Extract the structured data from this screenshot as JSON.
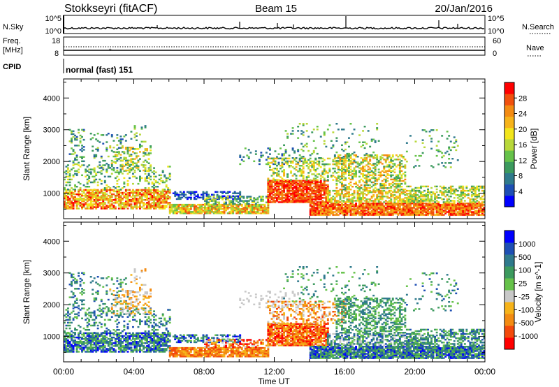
{
  "header": {
    "station": "Stokkseyri (fitACF)",
    "beam": "Beam 15",
    "date": "20/Jan/2016"
  },
  "top_panels": {
    "nsky_label": "N.Sky",
    "nsky_scale_top": "10^5",
    "nsky_scale_bottom": "10^0",
    "nsearch_label": "N.Search",
    "nsearch_scale_top": "10^5",
    "nsearch_scale_bottom": "10^0",
    "freq_label_1": "Freq.",
    "freq_label_2": "[MHz]",
    "freq_scale_top": "18",
    "freq_scale_bottom": "8",
    "nave_label": "Nave",
    "nave_scale_top": "60",
    "nave_scale_bottom": "0",
    "cpid_label": "CPID",
    "cpid_value": "normal (fast) 151"
  },
  "power_colorbar": {
    "label": "Power [dB]",
    "ticks": [
      "28",
      "24",
      "20",
      "16",
      "12",
      "8",
      "4"
    ],
    "colors": [
      "#0000ff",
      "#1e4fb4",
      "#2f7a8c",
      "#3c9a5e",
      "#66c24a",
      "#b8d83a",
      "#f2e51c",
      "#f6b31a",
      "#f38b12",
      "#f1500d",
      "#ff0000"
    ]
  },
  "velocity_colorbar": {
    "label": "Velocity [m s^-1]",
    "ticks": [
      "1000",
      "500",
      "100",
      "25",
      "-25",
      "-100",
      "-500",
      "-1000"
    ],
    "colors": [
      "#ff0000",
      "#f34a0c",
      "#f38b12",
      "#f6b31a",
      "#c8c8c8",
      "#66c24a",
      "#3c9a5e",
      "#2f7a8c",
      "#1e4fb4",
      "#0000ff"
    ]
  },
  "chart_data": [
    {
      "type": "heatmap",
      "name": "power",
      "ylabel": "Slant Range [km]",
      "xlabel": "Time UT",
      "x_ticks": [
        "00:00",
        "04:00",
        "08:00",
        "12:00",
        "16:00",
        "20:00",
        "00:00"
      ],
      "y_ticks": [
        "1000",
        "2000",
        "3000",
        "4000"
      ],
      "ylim": [
        200,
        4600
      ],
      "xlim_hours": [
        0,
        24
      ],
      "colorbar": "Power [dB]",
      "crange": [
        0,
        30
      ]
    },
    {
      "type": "heatmap",
      "name": "velocity",
      "ylabel": "Slant Range [km]",
      "xlabel": "Time UT",
      "x_ticks": [
        "00:00",
        "04:00",
        "08:00",
        "12:00",
        "16:00",
        "20:00",
        "00:00"
      ],
      "y_ticks": [
        "1000",
        "2000",
        "3000",
        "4000"
      ],
      "ylim": [
        200,
        4600
      ],
      "xlim_hours": [
        0,
        24
      ],
      "colorbar": "Velocity [m s^-1]",
      "crange": [
        -1000,
        1000
      ]
    }
  ]
}
